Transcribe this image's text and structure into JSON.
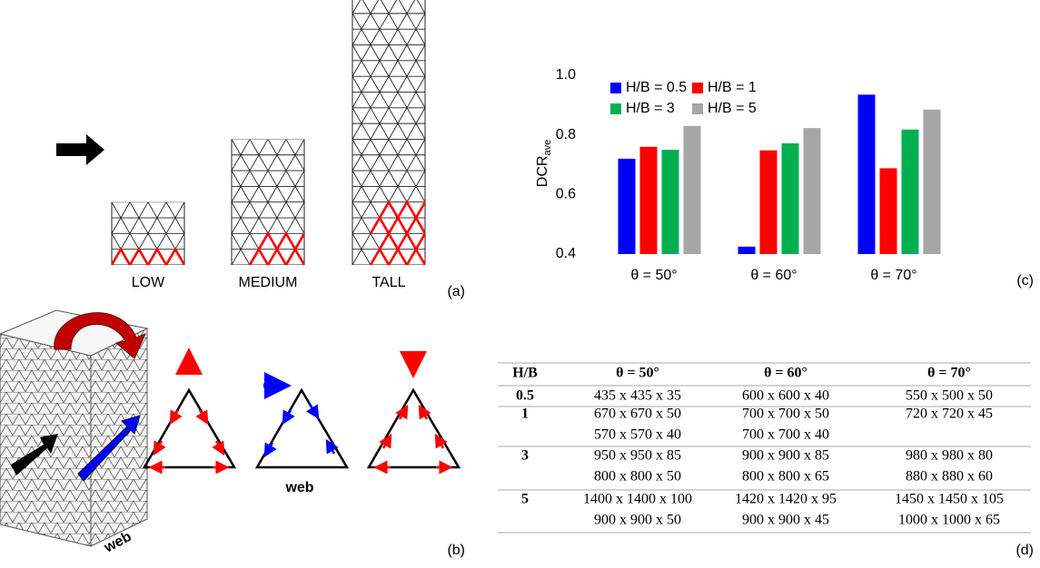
{
  "panel_a": {
    "labels": [
      "LOW",
      "MEDIUM",
      "TALL"
    ],
    "tag": "(a)"
  },
  "panel_b": {
    "labels": [
      "web",
      "web"
    ],
    "tag": "(b)"
  },
  "chart_data": {
    "type": "bar",
    "y_label": "DCR",
    "y_label_sub": "ave",
    "categories": [
      "θ = 50°",
      "θ = 60°",
      "θ = 70°"
    ],
    "series": [
      {
        "name": "H/B = 0.5",
        "color": "#0000ff",
        "values": [
          0.72,
          0.425,
          0.935
        ]
      },
      {
        "name": "H/B = 1",
        "color": "#ff0000",
        "values": [
          0.76,
          0.748,
          0.688
        ]
      },
      {
        "name": "H/B = 3",
        "color": "#00b050",
        "values": [
          0.75,
          0.772,
          0.818
        ]
      },
      {
        "name": "H/B = 5",
        "color": "#a6a6a6",
        "values": [
          0.83,
          0.823,
          0.885
        ]
      }
    ],
    "ylim": [
      0.4,
      1.0
    ],
    "yticks": [
      0.4,
      0.6,
      0.8,
      {
        "value": 1,
        "label": "1.0"
      }
    ],
    "legend": "upper left",
    "tag": "(c)"
  },
  "table": {
    "header": [
      "H/B",
      "θ = 50°",
      "θ = 60°",
      "θ = 70°"
    ],
    "rows": [
      {
        "hb": "0.5",
        "cells": [
          [
            "435 x 435 x 35"
          ],
          [
            "600 x 600 x 40"
          ],
          [
            "550 x 500 x 50"
          ]
        ]
      },
      {
        "hb": "1",
        "cells": [
          [
            "670 x 670 x 50",
            "570 x 570 x 40"
          ],
          [
            "700 x 700 x 50",
            "700 x 700 x 40"
          ],
          [
            "720 x 720 x 45"
          ]
        ]
      },
      {
        "hb": "3",
        "cells": [
          [
            "950 x 950 x 85",
            "800 x 800 x 50"
          ],
          [
            "900 x 900 x 85",
            "800 x 800 x 65"
          ],
          [
            "980 x 980 x 80",
            "880 x 880 x 60"
          ]
        ]
      },
      {
        "hb": "5",
        "cells": [
          [
            "1400 x 1400 x 100",
            "900 x 900 x 50"
          ],
          [
            "1420 x 1420 x 95",
            "900 x 900 x 45"
          ],
          [
            "1450 x 1450 x 105",
            "1000 x 1000 x 65"
          ]
        ]
      }
    ],
    "tag": "(d)"
  }
}
